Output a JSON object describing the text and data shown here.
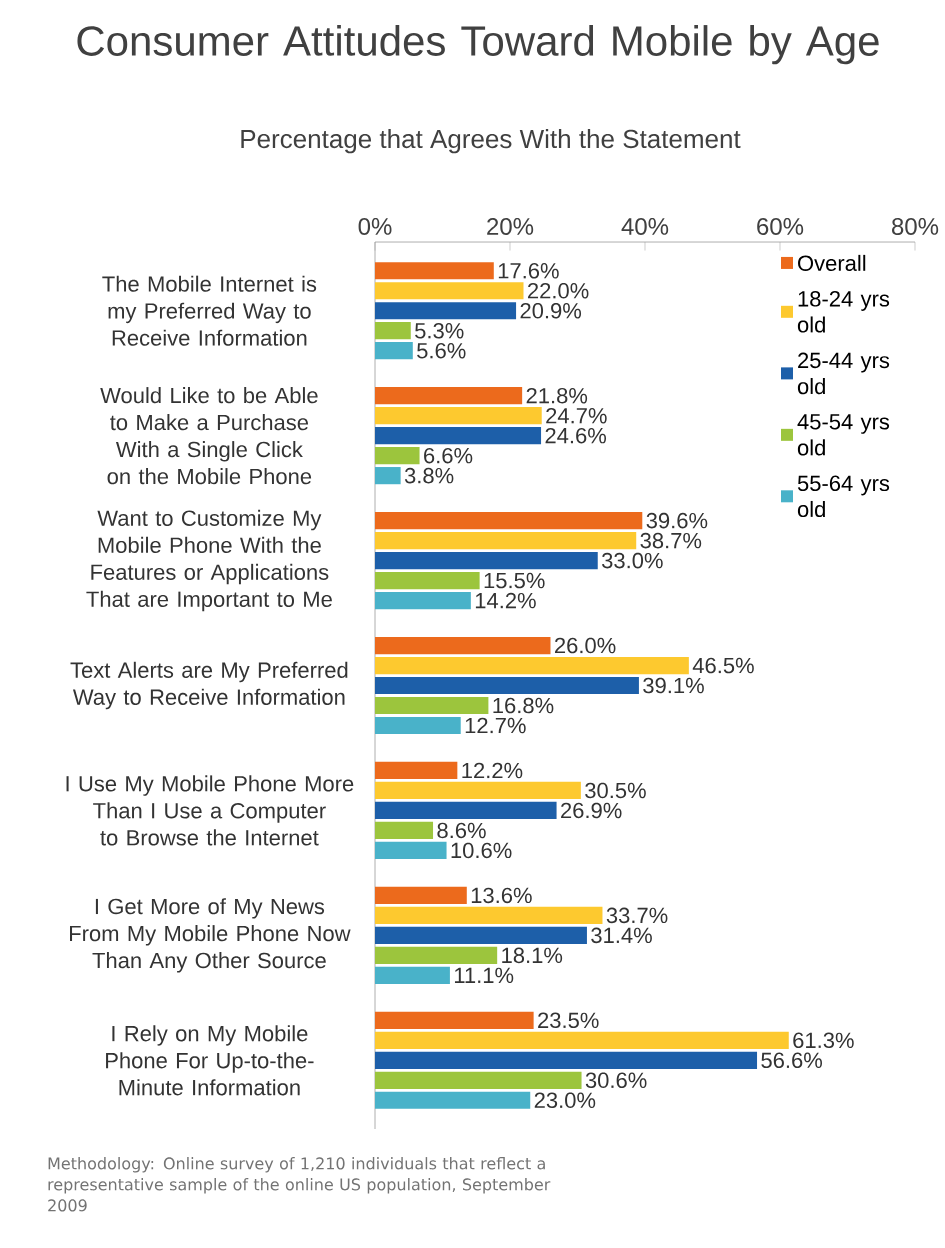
{
  "chart_data": {
    "type": "bar",
    "orientation": "horizontal",
    "title": "Consumer Attitudes Toward Mobile by Age",
    "subtitle": "Percentage that Agrees With the Statement",
    "categories": [
      "The Mobile Internet is my Preferred Way to Receive Information",
      "Would Like to be Able to Make a Purchase With a Single Click on the Mobile Phone",
      "Want to Customize My Mobile Phone With the Features or Applications That are Important to Me",
      "Text Alerts are My Preferred Way to Receive Information",
      "I Use My Mobile Phone More Than I Use a Computer to Browse the Internet",
      "I Get More of My News From My Mobile Phone Now Than Any Other Source",
      "I Rely on My Mobile Phone For Up-to-the-Minute Information"
    ],
    "series": [
      {
        "name": "Overall",
        "color": "#ec6a1c",
        "values": [
          17.6,
          21.8,
          39.6,
          26.0,
          12.2,
          13.6,
          23.5
        ],
        "value_labels": [
          "17.6%",
          "21.8%",
          "39.6%",
          "26.0%",
          "12.2%",
          "13.6%",
          "23.5%"
        ]
      },
      {
        "name": "18-24 yrs old",
        "color": "#fdc92f",
        "values": [
          22.0,
          24.7,
          38.7,
          46.5,
          30.5,
          33.7,
          61.3
        ],
        "value_labels": [
          "22.0%",
          "24.7%",
          "38.7%",
          "46.5%",
          "30.5%",
          "33.7%",
          "61.3%"
        ]
      },
      {
        "name": "25-44 yrs old",
        "color": "#1d5fa9",
        "values": [
          20.9,
          24.6,
          33.0,
          39.1,
          26.9,
          31.4,
          56.6
        ],
        "value_labels": [
          "20.9%",
          "24.6%",
          "33.0%",
          "39.1%",
          "26.9%",
          "31.4%",
          "56.6%"
        ]
      },
      {
        "name": "45-54 yrs old",
        "color": "#9cc53d",
        "values": [
          5.3,
          6.6,
          15.5,
          16.8,
          8.6,
          18.1,
          30.6
        ],
        "value_labels": [
          "5.3%",
          "6.6%",
          "15.5%",
          "16.8%",
          "8.6%",
          "18.1%",
          "30.6%"
        ]
      },
      {
        "name": "55-64 yrs old",
        "color": "#49b2c9",
        "values": [
          5.6,
          3.8,
          14.2,
          12.7,
          10.6,
          11.1,
          23.0
        ],
        "value_labels": [
          "5.6%",
          "3.8%",
          "14.2%",
          "12.7%",
          "10.6%",
          "11.1%",
          "23.0%"
        ]
      }
    ],
    "xlim": [
      0,
      80
    ],
    "xticks": [
      {
        "value": 0,
        "label": "0%"
      },
      {
        "value": 20,
        "label": "20%"
      },
      {
        "value": 40,
        "label": "40%"
      },
      {
        "value": 60,
        "label": "60%"
      },
      {
        "value": 80,
        "label": "80%"
      }
    ],
    "legend": "top right",
    "annotations": [
      "Methodology:  Online survey of 1,210 individuals that reflect a representative sample of the online US population, September 2009"
    ]
  }
}
